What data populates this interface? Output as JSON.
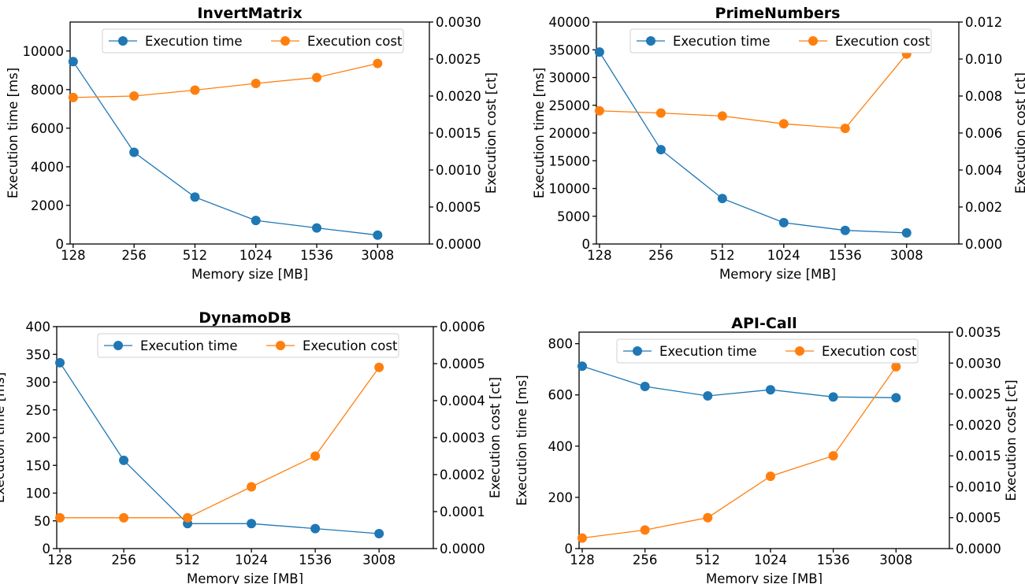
{
  "chart_data": [
    {
      "type": "line",
      "title": "InvertMatrix",
      "xlabel": "Memory size [MB]",
      "ylabel": "Execution time [ms]",
      "y2label": "Execution cost [ct]",
      "categories": [
        "128",
        "256",
        "512",
        "1024",
        "1536",
        "3008"
      ],
      "ylim": [
        0,
        11500
      ],
      "yticks": [
        "0",
        "2000",
        "4000",
        "6000",
        "8000",
        "10000"
      ],
      "yticks_values": [
        0,
        2000,
        4000,
        6000,
        8000,
        10000
      ],
      "y2lim": [
        0,
        0.003
      ],
      "y2ticks": [
        "0.0000",
        "0.0005",
        "0.0010",
        "0.0015",
        "0.0020",
        "0.0025",
        "0.0030"
      ],
      "y2ticks_values": [
        0,
        0.0005,
        0.001,
        0.0015,
        0.002,
        0.0025,
        0.003
      ],
      "legend_position": "top-center",
      "grid": false,
      "series": [
        {
          "name": "Execution time",
          "axis": "left",
          "color": "#1f77b4",
          "values": [
            9450,
            4750,
            2430,
            1220,
            830,
            460
          ]
        },
        {
          "name": "Execution cost",
          "axis": "right",
          "color": "#ff7f0e",
          "values": [
            0.00198,
            0.002,
            0.00208,
            0.00217,
            0.00225,
            0.00244
          ]
        }
      ]
    },
    {
      "type": "line",
      "title": "PrimeNumbers",
      "xlabel": "Memory size [MB]",
      "ylabel": "Execution time [ms]",
      "y2label": "Execution cost [ct]",
      "categories": [
        "128",
        "256",
        "512",
        "1024",
        "1536",
        "3008"
      ],
      "ylim": [
        0,
        40000
      ],
      "yticks": [
        "0",
        "5000",
        "10000",
        "15000",
        "20000",
        "25000",
        "30000",
        "35000",
        "40000"
      ],
      "yticks_values": [
        0,
        5000,
        10000,
        15000,
        20000,
        25000,
        30000,
        35000,
        40000
      ],
      "y2lim": [
        0,
        0.012
      ],
      "y2ticks": [
        "0.000",
        "0.002",
        "0.004",
        "0.006",
        "0.008",
        "0.010",
        "0.012"
      ],
      "y2ticks_values": [
        0,
        0.002,
        0.004,
        0.006,
        0.008,
        0.01,
        0.012
      ],
      "legend_position": "top-center",
      "grid": false,
      "series": [
        {
          "name": "Execution time",
          "axis": "left",
          "color": "#1f77b4",
          "values": [
            34600,
            17000,
            8200,
            3850,
            2450,
            2000
          ]
        },
        {
          "name": "Execution cost",
          "axis": "right",
          "color": "#ff7f0e",
          "values": [
            0.0072,
            0.00708,
            0.00692,
            0.0065,
            0.00625,
            0.01027
          ]
        }
      ]
    },
    {
      "type": "line",
      "title": "DynamoDB",
      "xlabel": "Memory size [MB]",
      "ylabel": "Execution time [ms]",
      "y2label": "Execution cost [ct]",
      "categories": [
        "128",
        "256",
        "512",
        "1024",
        "1536",
        "3008"
      ],
      "ylim": [
        0,
        400
      ],
      "yticks": [
        "0",
        "50",
        "100",
        "150",
        "200",
        "250",
        "300",
        "350",
        "400"
      ],
      "yticks_values": [
        0,
        50,
        100,
        150,
        200,
        250,
        300,
        350,
        400
      ],
      "y2lim": [
        0,
        0.0006
      ],
      "y2ticks": [
        "0.0000",
        "0.0001",
        "0.0002",
        "0.0003",
        "0.0004",
        "0.0005",
        "0.0006"
      ],
      "y2ticks_values": [
        0,
        0.0001,
        0.0002,
        0.0003,
        0.0004,
        0.0005,
        0.0006
      ],
      "legend_position": "top-center",
      "grid": false,
      "series": [
        {
          "name": "Execution time",
          "axis": "left",
          "color": "#1f77b4",
          "values": [
            335,
            159,
            45,
            45,
            36,
            27
          ]
        },
        {
          "name": "Execution cost",
          "axis": "right",
          "color": "#ff7f0e",
          "values": [
            8.33e-05,
            8.33e-05,
            8.33e-05,
            0.000167,
            0.00025,
            0.00049
          ]
        }
      ]
    },
    {
      "type": "line",
      "title": "API-Call",
      "xlabel": "Memory size [MB]",
      "ylabel": "Execution time [ms]",
      "y2label": "Execution cost [ct]",
      "categories": [
        "128",
        "256",
        "512",
        "1024",
        "1536",
        "3008"
      ],
      "ylim": [
        0,
        845
      ],
      "yticks": [
        "0",
        "200",
        "400",
        "600",
        "800"
      ],
      "yticks_values": [
        0,
        200,
        400,
        600,
        800
      ],
      "y2lim": [
        0,
        0.0035
      ],
      "y2ticks": [
        "0.0000",
        "0.0005",
        "0.0010",
        "0.0015",
        "0.0020",
        "0.0025",
        "0.0030",
        "0.0035"
      ],
      "y2ticks_values": [
        0,
        0.0005,
        0.001,
        0.0015,
        0.002,
        0.0025,
        0.003,
        0.0035
      ],
      "legend_position": "top-center",
      "grid": false,
      "series": [
        {
          "name": "Execution time",
          "axis": "left",
          "color": "#1f77b4",
          "values": [
            712,
            633,
            596,
            620,
            592,
            589
          ]
        },
        {
          "name": "Execution cost",
          "axis": "right",
          "color": "#ff7f0e",
          "values": [
            0.00017,
            0.0003,
            0.0005,
            0.00117,
            0.0015,
            0.00294
          ]
        }
      ]
    }
  ]
}
